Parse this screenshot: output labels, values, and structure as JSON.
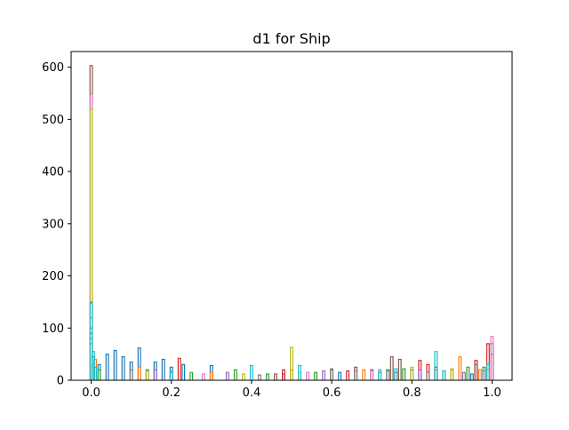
{
  "chart_data": {
    "type": "histogram",
    "histtype": "step",
    "title": "d1 for Ship",
    "xlabel": "",
    "ylabel": "",
    "xlim": [
      -0.05,
      1.05
    ],
    "ylim": [
      0,
      630
    ],
    "xticks": [
      0.0,
      0.2,
      0.4,
      0.6,
      0.8,
      1.0
    ],
    "xtick_labels": [
      "0.0",
      "0.2",
      "0.4",
      "0.6",
      "0.8",
      "1.0"
    ],
    "yticks": [
      0,
      100,
      200,
      300,
      400,
      500,
      600
    ],
    "ytick_labels": [
      "0",
      "100",
      "200",
      "300",
      "400",
      "500",
      "600"
    ],
    "grid": false,
    "legend": false,
    "series": [
      {
        "color": "#1f77b4",
        "spikes": [
          [
            0.0,
            150
          ],
          [
            0.005,
            45
          ],
          [
            0.02,
            30
          ],
          [
            0.04,
            50
          ],
          [
            0.06,
            57
          ],
          [
            0.08,
            45
          ],
          [
            0.1,
            35
          ],
          [
            0.12,
            62
          ],
          [
            0.14,
            20
          ],
          [
            0.16,
            35
          ],
          [
            0.18,
            40
          ],
          [
            0.2,
            25
          ],
          [
            0.23,
            30
          ],
          [
            0.3,
            28
          ],
          [
            0.48,
            12
          ],
          [
            0.62,
            15
          ],
          [
            0.8,
            20
          ],
          [
            0.95,
            12
          ]
        ]
      },
      {
        "color": "#ff7f0e",
        "spikes": [
          [
            0.0,
            120
          ],
          [
            0.01,
            40
          ],
          [
            0.12,
            25
          ],
          [
            0.3,
            15
          ],
          [
            0.5,
            20
          ],
          [
            0.68,
            20
          ],
          [
            0.86,
            20
          ],
          [
            0.9,
            20
          ],
          [
            0.92,
            45
          ],
          [
            0.97,
            20
          ]
        ]
      },
      {
        "color": "#2ca02c",
        "spikes": [
          [
            0.0,
            100
          ],
          [
            0.02,
            20
          ],
          [
            0.25,
            15
          ],
          [
            0.36,
            20
          ],
          [
            0.44,
            12
          ],
          [
            0.56,
            15
          ],
          [
            0.74,
            20
          ],
          [
            0.78,
            22
          ],
          [
            0.94,
            25
          ],
          [
            0.98,
            25
          ]
        ]
      },
      {
        "color": "#d62728",
        "spikes": [
          [
            0.0,
            90
          ],
          [
            0.22,
            42
          ],
          [
            0.48,
            20
          ],
          [
            0.64,
            18
          ],
          [
            0.76,
            15
          ],
          [
            0.82,
            38
          ],
          [
            0.84,
            30
          ],
          [
            0.86,
            25
          ],
          [
            0.96,
            38
          ],
          [
            0.99,
            70
          ]
        ]
      },
      {
        "color": "#9467bd",
        "spikes": [
          [
            0.0,
            80
          ],
          [
            0.16,
            20
          ],
          [
            0.34,
            15
          ],
          [
            0.58,
            18
          ],
          [
            0.72,
            15
          ],
          [
            0.82,
            20
          ],
          [
            0.93,
            15
          ],
          [
            1.0,
            50
          ]
        ]
      },
      {
        "color": "#8c564b",
        "spikes": [
          [
            0.0,
            603
          ],
          [
            0.005,
            30
          ],
          [
            0.2,
            15
          ],
          [
            0.46,
            12
          ],
          [
            0.6,
            20
          ],
          [
            0.66,
            25
          ],
          [
            0.7,
            20
          ],
          [
            0.75,
            45
          ],
          [
            0.77,
            40
          ],
          [
            0.96,
            30
          ],
          [
            1.0,
            70
          ]
        ]
      },
      {
        "color": "#e377c2",
        "spikes": [
          [
            0.0,
            548
          ],
          [
            0.005,
            25
          ],
          [
            0.28,
            12
          ],
          [
            0.54,
            15
          ],
          [
            0.7,
            18
          ],
          [
            0.88,
            18
          ],
          [
            1.0,
            84
          ]
        ]
      },
      {
        "color": "#7f7f7f",
        "spikes": [
          [
            0.0,
            70
          ],
          [
            0.1,
            20
          ],
          [
            0.42,
            10
          ],
          [
            0.6,
            22
          ],
          [
            0.66,
            18
          ],
          [
            0.74,
            18
          ],
          [
            0.84,
            15
          ],
          [
            0.98,
            18
          ]
        ]
      },
      {
        "color": "#bcbd22",
        "spikes": [
          [
            0.0,
            520
          ],
          [
            0.005,
            30
          ],
          [
            0.14,
            18
          ],
          [
            0.38,
            12
          ],
          [
            0.5,
            63
          ],
          [
            0.52,
            15
          ],
          [
            0.8,
            25
          ],
          [
            0.9,
            22
          ],
          [
            0.99,
            20
          ]
        ]
      },
      {
        "color": "#17becf",
        "spikes": [
          [
            0.0,
            148
          ],
          [
            0.005,
            55
          ],
          [
            0.01,
            25
          ],
          [
            0.2,
            18
          ],
          [
            0.4,
            28
          ],
          [
            0.52,
            28
          ],
          [
            0.72,
            20
          ],
          [
            0.76,
            22
          ],
          [
            0.86,
            55
          ],
          [
            0.88,
            18
          ],
          [
            0.99,
            30
          ]
        ]
      }
    ]
  }
}
